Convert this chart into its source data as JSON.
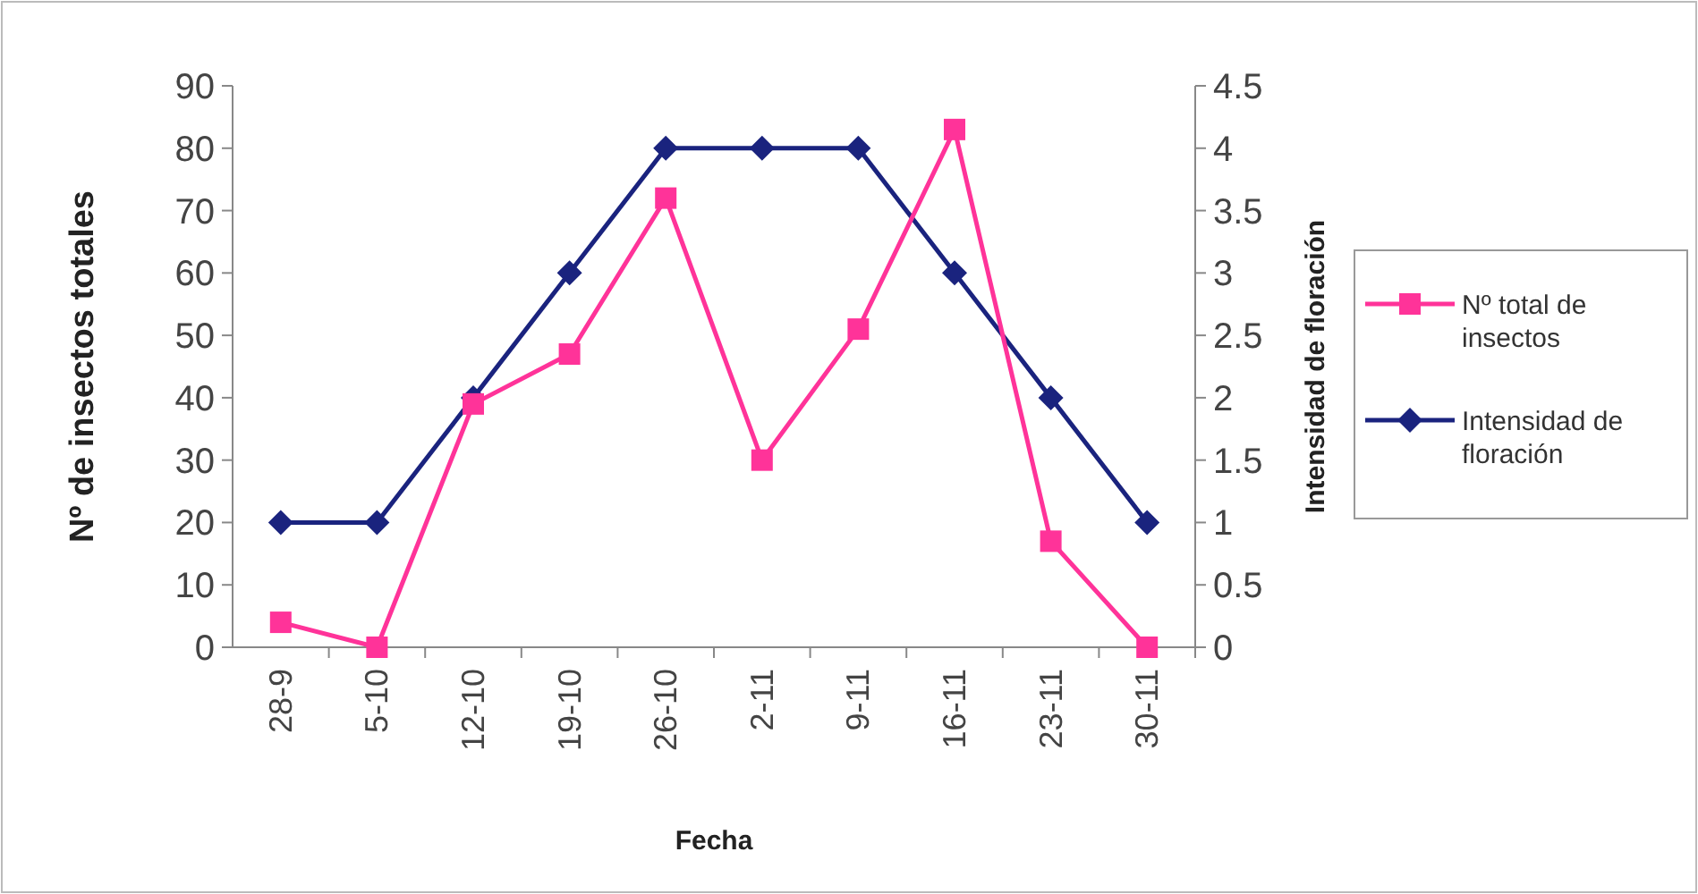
{
  "chart_data": {
    "type": "line",
    "xlabel": "Fecha",
    "ylabel": "Nº de insectos totales",
    "y2label": "Intensidad de floración",
    "categories": [
      "28-9",
      "5-10",
      "12-10",
      "19-10",
      "26-10",
      "2-11",
      "9-11",
      "16-11",
      "23-11",
      "30-11"
    ],
    "series": [
      {
        "name": "Nº total de insectos",
        "color": "#ff3399",
        "marker": "square",
        "values": [
          4,
          0,
          39,
          47,
          72,
          30,
          51,
          83,
          17,
          0
        ]
      },
      {
        "name": "Intensidad de floración",
        "color": "#1a237e",
        "marker": "diamond",
        "axis": "y2",
        "values": [
          1,
          1,
          2,
          3,
          4,
          4,
          4,
          3,
          2,
          1
        ]
      }
    ],
    "ylim": [
      0,
      90
    ],
    "yticks": [
      0,
      10,
      20,
      30,
      40,
      50,
      60,
      70,
      80,
      90
    ],
    "y2lim": [
      0,
      4.5
    ],
    "y2ticks": [
      0,
      0.5,
      1,
      1.5,
      2,
      2.5,
      3,
      3.5,
      4,
      4.5
    ],
    "grid": false,
    "legend": "right"
  }
}
